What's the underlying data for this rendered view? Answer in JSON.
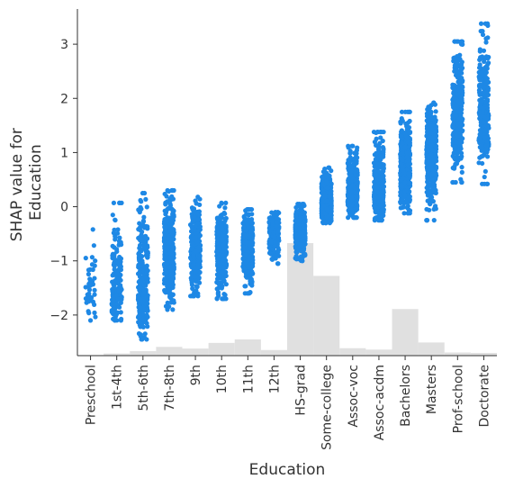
{
  "chart_data": {
    "type": "scatter",
    "title": "",
    "xlabel": "Education",
    "ylabel": [
      "SHAP value for",
      "Education"
    ],
    "categories": [
      "Preschool",
      "1st-4th",
      "5th-6th",
      "7th-8th",
      "9th",
      "10th",
      "11th",
      "12th",
      "HS-grad",
      "Some-college",
      "Assoc-voc",
      "Assoc-acdm",
      "Bachelors",
      "Masters",
      "Prof-school",
      "Doctorate"
    ],
    "yticks": [
      3,
      2,
      1,
      0,
      -1,
      -2
    ],
    "ytick_labels": [
      "3",
      "2",
      "1",
      "0",
      "−1",
      "−2"
    ],
    "ylim": [
      -2.75,
      3.65
    ],
    "point_color": "#1e88e5",
    "histogram_color": "#e0e0e0",
    "series": [
      {
        "category": "Preschool",
        "center": -1.4,
        "min": -2.1,
        "max": -0.42,
        "count": 40
      },
      {
        "category": "1st-4th",
        "center": -1.55,
        "min": -2.1,
        "max": 0.07,
        "count": 170
      },
      {
        "category": "5th-6th",
        "center": -1.6,
        "min": -2.45,
        "max": 0.25,
        "count": 260
      },
      {
        "category": "7th-8th",
        "center": -0.85,
        "min": -1.9,
        "max": 0.3,
        "count": 330
      },
      {
        "category": "9th",
        "center": -0.85,
        "min": -1.65,
        "max": 0.18,
        "count": 300
      },
      {
        "category": "10th",
        "center": -0.75,
        "min": -1.7,
        "max": 0.07,
        "count": 340
      },
      {
        "category": "11th",
        "center": -0.75,
        "min": -1.6,
        "max": -0.05,
        "count": 360
      },
      {
        "category": "12th",
        "center": -0.5,
        "min": -1.05,
        "max": -0.1,
        "count": 200
      },
      {
        "category": "HS-grad",
        "center": -0.45,
        "min": -1.0,
        "max": 0.05,
        "count": 420
      },
      {
        "category": "Some-college",
        "center": 0.05,
        "min": -0.3,
        "max": 0.72,
        "count": 420
      },
      {
        "category": "Assoc-voc",
        "center": 0.3,
        "min": -0.2,
        "max": 1.12,
        "count": 380
      },
      {
        "category": "Assoc-acdm",
        "center": 0.3,
        "min": -0.25,
        "max": 1.38,
        "count": 360
      },
      {
        "category": "Bachelors",
        "center": 0.7,
        "min": -0.12,
        "max": 1.75,
        "count": 420
      },
      {
        "category": "Masters",
        "center": 1.05,
        "min": -0.25,
        "max": 1.92,
        "count": 400
      },
      {
        "category": "Prof-school",
        "center": 1.65,
        "min": 0.45,
        "max": 3.05,
        "count": 300
      },
      {
        "category": "Doctorate",
        "center": 1.8,
        "min": 0.42,
        "max": 3.38,
        "count": 260
      }
    ],
    "histogram": {
      "categories": [
        "Preschool",
        "1st-4th",
        "5th-6th",
        "7th-8th",
        "9th",
        "10th",
        "11th",
        "12th",
        "HS-grad",
        "Some-college",
        "Assoc-voc",
        "Assoc-acdm",
        "Bachelors",
        "Masters",
        "Prof-school",
        "Doctorate"
      ],
      "relative_counts": [
        0.005,
        0.019,
        0.04,
        0.078,
        0.063,
        0.113,
        0.144,
        0.05,
        1.0,
        0.709,
        0.066,
        0.054,
        0.414,
        0.117,
        0.028,
        0.024
      ]
    },
    "grid": false,
    "legend": "none"
  }
}
